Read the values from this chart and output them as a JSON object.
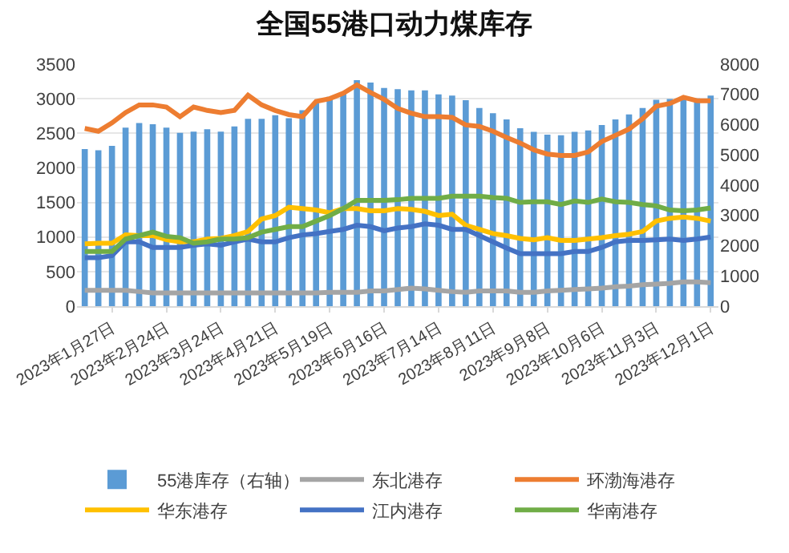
{
  "chart_data": {
    "type": "bar",
    "title": "全国55港口动力煤库存",
    "x": [
      "2023-01-13",
      "2023-01-20",
      "2023-01-27",
      "2023-02-03",
      "2023-02-10",
      "2023-02-17",
      "2023-02-24",
      "2023-03-03",
      "2023-03-10",
      "2023-03-17",
      "2023-03-24",
      "2023-03-31",
      "2023-04-07",
      "2023-04-14",
      "2023-04-21",
      "2023-04-28",
      "2023-05-05",
      "2023-05-12",
      "2023-05-19",
      "2023-05-26",
      "2023-06-02",
      "2023-06-09",
      "2023-06-16",
      "2023-06-23",
      "2023-06-30",
      "2023-07-07",
      "2023-07-14",
      "2023-07-21",
      "2023-07-28",
      "2023-08-04",
      "2023-08-11",
      "2023-08-18",
      "2023-08-25",
      "2023-09-01",
      "2023-09-08",
      "2023-09-15",
      "2023-09-22",
      "2023-09-29",
      "2023-10-06",
      "2023-10-13",
      "2023-10-20",
      "2023-10-27",
      "2023-11-03",
      "2023-11-10",
      "2023-11-17",
      "2023-11-24",
      "2023-12-01"
    ],
    "series": [
      {
        "name": "55港库存（右轴）",
        "axis": "y2",
        "color": "#5b9bd5",
        "values": [
          5190,
          5150,
          5300,
          5900,
          6050,
          6010,
          5900,
          5730,
          5770,
          5850,
          5770,
          5940,
          6190,
          6190,
          6310,
          6210,
          6480,
          6700,
          6920,
          7030,
          7470,
          7390,
          7210,
          7170,
          7130,
          7130,
          7000,
          6960,
          6810,
          6550,
          6380,
          6170,
          5880,
          5760,
          5670,
          5650,
          5760,
          5810,
          5990,
          6170,
          6340,
          6550,
          6820,
          6850,
          6920,
          6870,
          6960
        ]
      },
      {
        "name": "东北港存",
        "type": "line",
        "color": "#a5a5a5",
        "values": [
          230,
          230,
          230,
          230,
          210,
          190,
          190,
          190,
          190,
          190,
          190,
          190,
          190,
          190,
          190,
          190,
          190,
          190,
          200,
          200,
          200,
          220,
          220,
          240,
          260,
          250,
          230,
          210,
          200,
          220,
          220,
          220,
          200,
          200,
          220,
          230,
          240,
          250,
          260,
          280,
          290,
          310,
          320,
          330,
          350,
          350,
          340
        ]
      },
      {
        "name": "环渤海港存",
        "type": "line",
        "color": "#ed7d31",
        "values": [
          2570,
          2530,
          2650,
          2800,
          2910,
          2910,
          2880,
          2740,
          2880,
          2830,
          2800,
          2830,
          3050,
          2910,
          2830,
          2770,
          2740,
          2960,
          3000,
          3080,
          3200,
          3090,
          2990,
          2860,
          2790,
          2740,
          2740,
          2730,
          2620,
          2600,
          2530,
          2440,
          2360,
          2260,
          2200,
          2180,
          2180,
          2230,
          2380,
          2470,
          2560,
          2710,
          2890,
          2930,
          3020,
          2970,
          2970
        ]
      },
      {
        "name": "华东港存",
        "type": "line",
        "color": "#ffc000",
        "values": [
          900,
          910,
          910,
          1030,
          1020,
          1020,
          960,
          930,
          930,
          970,
          980,
          1020,
          1080,
          1260,
          1310,
          1430,
          1410,
          1390,
          1350,
          1410,
          1410,
          1380,
          1380,
          1410,
          1400,
          1370,
          1310,
          1330,
          1170,
          1110,
          1050,
          1020,
          980,
          960,
          990,
          950,
          950,
          970,
          990,
          1020,
          1040,
          1080,
          1230,
          1270,
          1290,
          1270,
          1230
        ]
      },
      {
        "name": "江内港存",
        "type": "line",
        "color": "#4472c4",
        "values": [
          700,
          700,
          730,
          930,
          930,
          850,
          850,
          850,
          880,
          900,
          880,
          930,
          970,
          930,
          930,
          990,
          1030,
          1050,
          1080,
          1110,
          1170,
          1150,
          1090,
          1130,
          1150,
          1190,
          1170,
          1110,
          1110,
          1020,
          930,
          840,
          760,
          760,
          760,
          760,
          790,
          790,
          850,
          930,
          950,
          950,
          960,
          970,
          950,
          970,
          1000
        ]
      },
      {
        "name": "华南港存",
        "type": "line",
        "color": "#70ad47",
        "values": [
          790,
          790,
          790,
          970,
          1020,
          1070,
          1010,
          990,
          910,
          930,
          970,
          970,
          990,
          1070,
          1110,
          1150,
          1150,
          1230,
          1310,
          1410,
          1530,
          1530,
          1530,
          1540,
          1560,
          1560,
          1560,
          1590,
          1590,
          1590,
          1570,
          1560,
          1500,
          1510,
          1510,
          1470,
          1520,
          1500,
          1550,
          1510,
          1500,
          1470,
          1450,
          1390,
          1380,
          1390,
          1420
        ]
      }
    ],
    "xlim": [
      "2023-01-09",
      "2023-12-05"
    ],
    "xticks": [
      {
        "value": "2023-01-27",
        "label": "2023年1月27日"
      },
      {
        "value": "2023-02-24",
        "label": "2023年2月24日"
      },
      {
        "value": "2023-03-24",
        "label": "2023年3月24日"
      },
      {
        "value": "2023-04-21",
        "label": "2023年4月21日"
      },
      {
        "value": "2023-05-19",
        "label": "2023年5月19日"
      },
      {
        "value": "2023-06-16",
        "label": "2023年6月16日"
      },
      {
        "value": "2023-07-14",
        "label": "2023年7月14日"
      },
      {
        "value": "2023-08-11",
        "label": "2023年8月11日"
      },
      {
        "value": "2023-09-08",
        "label": "2023年9月8日"
      },
      {
        "value": "2023-10-06",
        "label": "2023年10月6日"
      },
      {
        "value": "2023-11-03",
        "label": "2023年11月3日"
      },
      {
        "value": "2023-12-01",
        "label": "2023年12月1日"
      }
    ],
    "ylim": [
      0,
      3500
    ],
    "yticks": [
      0,
      500,
      1000,
      1500,
      2000,
      2500,
      3000,
      3500
    ],
    "y2lim": [
      0,
      8000
    ],
    "y2ticks": [
      0,
      1000,
      2000,
      3000,
      4000,
      5000,
      6000,
      7000,
      8000
    ],
    "grid": "y",
    "legend": "bottom",
    "marker": "none",
    "line_style": "solid"
  }
}
